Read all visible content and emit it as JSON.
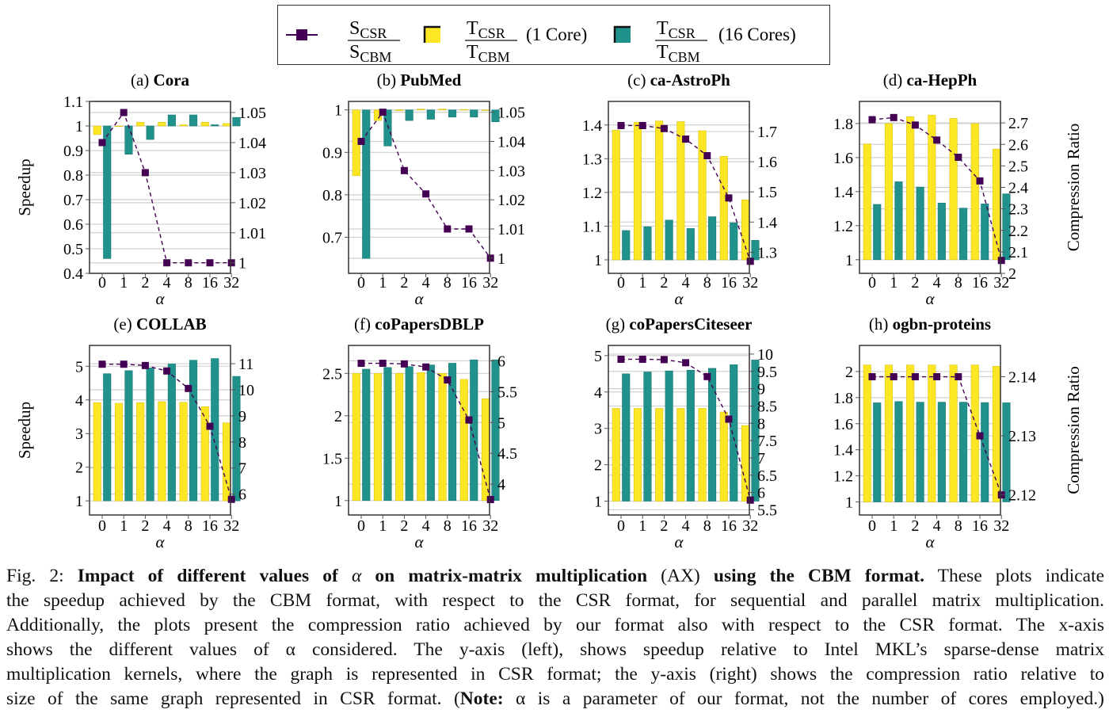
{
  "legend": {
    "entries": [
      {
        "id": "size_ratio",
        "num": "S",
        "num_sub": "CSR",
        "den": "S",
        "den_sub": "CBM",
        "suffix": "",
        "color": "#440154",
        "kind": "line-marker"
      },
      {
        "id": "time_1core",
        "num": "T",
        "num_sub": "CSR",
        "den": "T",
        "den_sub": "CBM",
        "suffix": "(1 Core)",
        "color": "#fde725",
        "kind": "bar"
      },
      {
        "id": "time_16core",
        "num": "T",
        "num_sub": "CSR",
        "den": "T",
        "den_sub": "CBM",
        "suffix": "(16 Cores)",
        "color": "#21918c",
        "kind": "bar"
      }
    ]
  },
  "colors": {
    "one_core": "#fde725",
    "sixteen_cores": "#21918c",
    "compression": "#440154",
    "grid": "#d0d0d0"
  },
  "chart_data": [
    {
      "type": "bar",
      "panel": "(a)",
      "title": "Cora",
      "categories": [
        "0",
        "1",
        "2",
        "4",
        "8",
        "16",
        "32"
      ],
      "xlabel": "α",
      "ylabel": "Speedup",
      "y2label": "",
      "ylim": [
        0.4,
        1.1
      ],
      "yticks": [
        0.4,
        0.5,
        0.6,
        0.7,
        0.8,
        0.9,
        1,
        1.1
      ],
      "y2lim": [
        0.9965,
        1.0537
      ],
      "y2ticks": [
        1,
        1.01,
        1.02,
        1.03,
        1.04,
        1.05
      ],
      "baseline": 1,
      "series": [
        {
          "name": "1 Core",
          "axis": "left",
          "kind": "bar",
          "values": [
            0.965,
            1.0,
            1.015,
            1.015,
            1.005,
            1.015,
            1.01
          ]
        },
        {
          "name": "16 Cores",
          "axis": "left",
          "kind": "bar",
          "values": [
            0.46,
            0.885,
            0.945,
            1.045,
            1.045,
            1.005,
            1.035
          ]
        },
        {
          "name": "Compression Ratio",
          "axis": "right",
          "kind": "line",
          "values": [
            1.04,
            1.05,
            1.03,
            1.0,
            1.0,
            1.0,
            1.0
          ]
        }
      ]
    },
    {
      "type": "bar",
      "panel": "(b)",
      "title": "PubMed",
      "categories": [
        "0",
        "1",
        "2",
        "4",
        "8",
        "16",
        "32"
      ],
      "xlabel": "α",
      "ylabel": "",
      "y2label": "",
      "ylim": [
        0.615,
        1.02
      ],
      "yticks": [
        0.7,
        0.8,
        0.9,
        1
      ],
      "y2lim": [
        0.9948,
        1.0537
      ],
      "y2ticks": [
        1,
        1.01,
        1.02,
        1.03,
        1.04,
        1.05
      ],
      "baseline": 1,
      "series": [
        {
          "name": "1 Core",
          "axis": "left",
          "kind": "bar",
          "values": [
            0.845,
            0.975,
            0.998,
            1.002,
            1.002,
            1.001,
            0.999
          ]
        },
        {
          "name": "16 Cores",
          "axis": "left",
          "kind": "bar",
          "values": [
            0.65,
            0.915,
            0.975,
            0.978,
            0.983,
            0.983,
            0.972
          ]
        },
        {
          "name": "Compression Ratio",
          "axis": "right",
          "kind": "line",
          "values": [
            1.04,
            1.05,
            1.03,
            1.022,
            1.01,
            1.01,
            1.0
          ]
        }
      ]
    },
    {
      "type": "bar",
      "panel": "(c)",
      "title": "ca-AstroPh",
      "categories": [
        "0",
        "1",
        "2",
        "4",
        "8",
        "16",
        "32"
      ],
      "xlabel": "α",
      "ylabel": "",
      "y2label": "",
      "ylim": [
        0.96,
        1.47
      ],
      "yticks": [
        1,
        1.1,
        1.2,
        1.3,
        1.4
      ],
      "y2lim": [
        1.23,
        1.8
      ],
      "y2ticks": [
        1.3,
        1.4,
        1.5,
        1.6,
        1.7
      ],
      "baseline": 1,
      "series": [
        {
          "name": "1 Core",
          "axis": "left",
          "kind": "bar",
          "values": [
            1.385,
            1.408,
            1.412,
            1.41,
            1.383,
            1.307,
            1.178
          ]
        },
        {
          "name": "16 Cores",
          "axis": "left",
          "kind": "bar",
          "values": [
            1.087,
            1.098,
            1.118,
            1.093,
            1.128,
            1.11,
            1.058
          ]
        },
        {
          "name": "Compression Ratio",
          "axis": "right",
          "kind": "line",
          "values": [
            1.72,
            1.72,
            1.71,
            1.675,
            1.62,
            1.48,
            1.27
          ]
        }
      ]
    },
    {
      "type": "bar",
      "panel": "(d)",
      "title": "ca-HepPh",
      "categories": [
        "0",
        "1",
        "2",
        "4",
        "8",
        "16",
        "32"
      ],
      "xlabel": "α",
      "ylabel": "",
      "y2label": "Compression Ratio",
      "ylim": [
        0.92,
        1.93
      ],
      "yticks": [
        1,
        1.2,
        1.4,
        1.6,
        1.8
      ],
      "y2lim": [
        2.0,
        2.8
      ],
      "y2ticks": [
        2,
        2.1,
        2.2,
        2.3,
        2.4,
        2.5,
        2.6,
        2.7
      ],
      "baseline": 1,
      "series": [
        {
          "name": "1 Core",
          "axis": "left",
          "kind": "bar",
          "values": [
            1.68,
            1.8,
            1.84,
            1.85,
            1.83,
            1.8,
            1.65
          ]
        },
        {
          "name": "16 Cores",
          "axis": "left",
          "kind": "bar",
          "values": [
            1.325,
            1.458,
            1.427,
            1.333,
            1.303,
            1.328,
            1.387
          ]
        },
        {
          "name": "Compression Ratio",
          "axis": "right",
          "kind": "line",
          "values": [
            2.715,
            2.725,
            2.69,
            2.62,
            2.54,
            2.43,
            2.06
          ]
        }
      ]
    },
    {
      "type": "bar",
      "panel": "(e)",
      "title": "COLLAB",
      "categories": [
        "0",
        "1",
        "2",
        "4",
        "8",
        "16",
        "32"
      ],
      "xlabel": "α",
      "ylabel": "Speedup",
      "y2label": "",
      "ylim": [
        0.58,
        5.62
      ],
      "yticks": [
        1,
        2,
        3,
        4,
        5
      ],
      "y2lim": [
        5.2,
        11.7
      ],
      "y2ticks": [
        6,
        7,
        8,
        9,
        10,
        11
      ],
      "baseline": 1,
      "series": [
        {
          "name": "1 Core",
          "axis": "left",
          "kind": "bar",
          "values": [
            3.92,
            3.9,
            3.92,
            3.95,
            3.93,
            3.8,
            3.32
          ]
        },
        {
          "name": "16 Cores",
          "axis": "left",
          "kind": "bar",
          "values": [
            4.78,
            4.87,
            4.95,
            5.07,
            5.18,
            5.23,
            4.7
          ]
        },
        {
          "name": "Compression Ratio",
          "axis": "right",
          "kind": "line",
          "values": [
            10.98,
            10.98,
            10.93,
            10.72,
            10.05,
            8.6,
            5.8
          ]
        }
      ]
    },
    {
      "type": "bar",
      "panel": "(f)",
      "title": "coPapersDBLP",
      "categories": [
        "0",
        "1",
        "2",
        "4",
        "8",
        "16",
        "32"
      ],
      "xlabel": "α",
      "ylabel": "",
      "y2label": "",
      "ylim": [
        0.83,
        2.83
      ],
      "yticks": [
        1,
        1.5,
        2,
        2.5
      ],
      "y2lim": [
        3.5,
        6.25
      ],
      "y2ticks": [
        4,
        4.5,
        5,
        5.5,
        6
      ],
      "baseline": 1,
      "series": [
        {
          "name": "1 Core",
          "axis": "left",
          "kind": "bar",
          "values": [
            2.5,
            2.5,
            2.5,
            2.51,
            2.5,
            2.43,
            2.2
          ]
        },
        {
          "name": "16 Cores",
          "axis": "left",
          "kind": "bar",
          "values": [
            2.55,
            2.57,
            2.58,
            2.6,
            2.62,
            2.66,
            2.66
          ]
        },
        {
          "name": "Compression Ratio",
          "axis": "right",
          "kind": "line",
          "values": [
            5.96,
            5.96,
            5.95,
            5.9,
            5.69,
            5.04,
            3.75
          ]
        }
      ]
    },
    {
      "type": "bar",
      "panel": "(g)",
      "title": "coPapersCiteseer",
      "categories": [
        "0",
        "1",
        "2",
        "4",
        "8",
        "16",
        "32"
      ],
      "xlabel": "α",
      "ylabel": "",
      "y2label": "",
      "ylim": [
        0.62,
        5.28
      ],
      "yticks": [
        1,
        2,
        3,
        4,
        5
      ],
      "y2lim": [
        5.35,
        10.25
      ],
      "y2ticks": [
        5.5,
        6,
        6.5,
        7,
        7.5,
        8,
        8.5,
        9,
        9.5,
        10
      ],
      "baseline": 1,
      "series": [
        {
          "name": "1 Core",
          "axis": "left",
          "kind": "bar",
          "values": [
            3.55,
            3.55,
            3.55,
            3.55,
            3.55,
            3.45,
            3.08
          ]
        },
        {
          "name": "16 Cores",
          "axis": "left",
          "kind": "bar",
          "values": [
            4.5,
            4.55,
            4.58,
            4.6,
            4.65,
            4.75,
            4.88
          ]
        },
        {
          "name": "Compression Ratio",
          "axis": "right",
          "kind": "line",
          "values": [
            9.85,
            9.85,
            9.84,
            9.75,
            9.35,
            8.12,
            5.78
          ]
        }
      ]
    },
    {
      "type": "bar",
      "panel": "(h)",
      "title": "ogbn-proteins",
      "categories": [
        "0",
        "1",
        "2",
        "4",
        "8",
        "16",
        "32"
      ],
      "xlabel": "α",
      "ylabel": "",
      "y2label": "Compression Ratio",
      "ylim": [
        0.9,
        2.2
      ],
      "yticks": [
        1,
        1.2,
        1.4,
        1.6,
        1.8,
        2
      ],
      "y2lim": [
        2.1166,
        2.1453
      ],
      "y2ticks": [
        2.12,
        2.13,
        2.14
      ],
      "baseline": 1,
      "series": [
        {
          "name": "1 Core",
          "axis": "left",
          "kind": "bar",
          "values": [
            2.05,
            2.05,
            2.05,
            2.05,
            2.05,
            2.05,
            2.04
          ]
        },
        {
          "name": "16 Cores",
          "axis": "left",
          "kind": "bar",
          "values": [
            1.76,
            1.77,
            1.765,
            1.765,
            1.765,
            1.762,
            1.76
          ]
        },
        {
          "name": "Compression Ratio",
          "axis": "right",
          "kind": "line",
          "values": [
            2.14,
            2.14,
            2.14,
            2.14,
            2.14,
            2.13,
            2.12
          ]
        }
      ]
    }
  ],
  "caption": {
    "fig_label": "Fig. 2:",
    "bold_title_a": "Impact of different values of",
    "alpha": "α",
    "bold_title_b": "on matrix-matrix multiplication",
    "ax": "(AX)",
    "bold_title_c": "using the CBM format.",
    "lines": [
      "These plots indicate",
      "the speedup achieved by the CBM format, with respect to the CSR format, for sequential and parallel matrix multiplication.",
      "Additionally, the plots present the compression ratio achieved by our format also with respect to the CSR format. The x-axis",
      "shows the different values of α considered. The y-axis (left), shows speedup relative to Intel MKL’s sparse-dense matrix",
      "multiplication kernels, where the graph is represented in CSR format; the y-axis (right) shows the compression ratio relative to"
    ],
    "last_prefix": "size of the same graph represented in CSR format. (",
    "note_label": "Note:",
    "last_suffix": " α is a parameter of our format, not the number of cores employed.)"
  }
}
